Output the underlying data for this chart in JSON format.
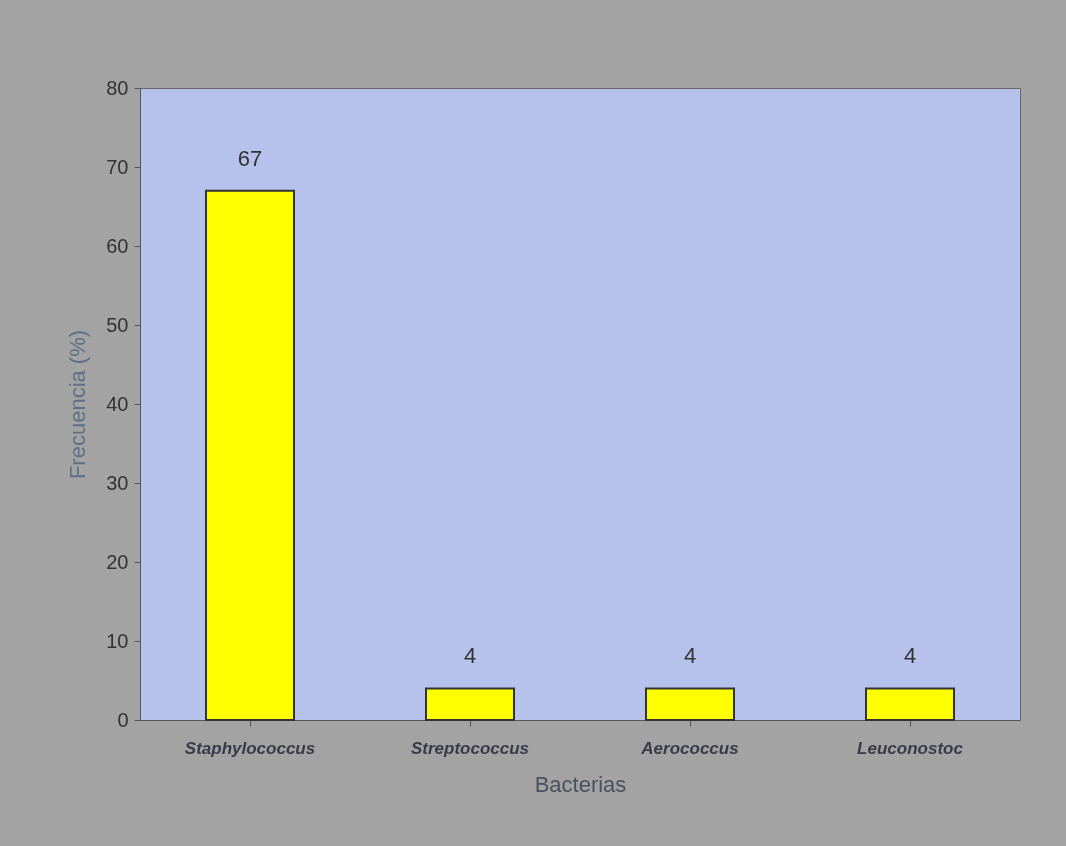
{
  "chart_data": {
    "type": "bar",
    "xlabel": "Bacterias",
    "ylabel": "Frecuencia (%)",
    "categories": [
      "Staphylococcus",
      "Streptococcus",
      "Aerococcus",
      "Leuconostoc"
    ],
    "values": [
      67,
      4,
      4,
      4
    ],
    "color": "#ffff00",
    "ylim": [
      0,
      80
    ],
    "yticks": [
      0,
      10,
      20,
      30,
      40,
      50,
      60,
      70,
      80
    ],
    "data_labels": true
  }
}
